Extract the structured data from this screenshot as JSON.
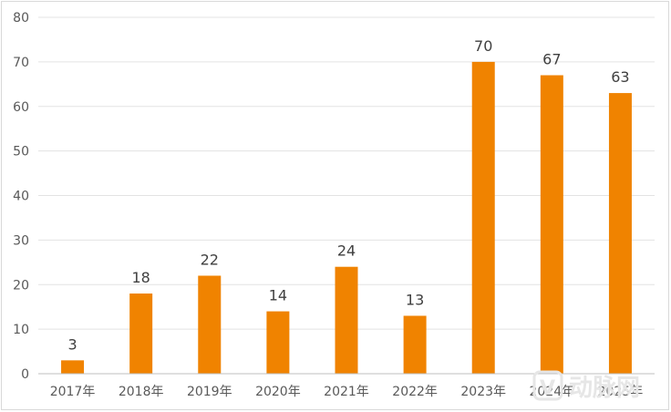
{
  "chart_data": {
    "type": "bar",
    "categories": [
      "2017年",
      "2018年",
      "2019年",
      "2020年",
      "2021年",
      "2022年",
      "2023年",
      "2024年",
      "2025年"
    ],
    "values": [
      3,
      18,
      22,
      14,
      24,
      13,
      70,
      67,
      63
    ],
    "title": "",
    "xlabel": "",
    "ylabel": "",
    "ylim": [
      0,
      80
    ],
    "yticks": [
      0,
      10,
      20,
      30,
      40,
      50,
      60,
      70,
      80
    ],
    "grid": true,
    "legend": "none",
    "bar_color": "#F08300",
    "data_labels": true
  },
  "watermark": {
    "text": "动脉网",
    "icon": "v-logo-icon",
    "color": "#e6e6e6"
  }
}
